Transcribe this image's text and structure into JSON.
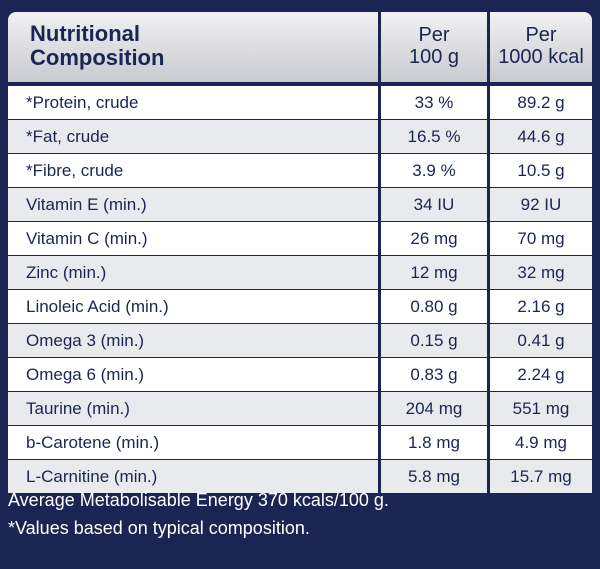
{
  "table": {
    "header": {
      "title_line1": "Nutritional",
      "title_line2": "Composition",
      "col1_line1": "Per",
      "col1_line2": "100 g",
      "col2_line1": "Per",
      "col2_line2": "1000 kcal"
    },
    "rows": [
      {
        "name": "*Protein, crude",
        "per100g": "33 %",
        "per1000kcal": "89.2 g"
      },
      {
        "name": "*Fat, crude",
        "per100g": "16.5 %",
        "per1000kcal": "44.6 g"
      },
      {
        "name": "*Fibre, crude",
        "per100g": "3.9 %",
        "per1000kcal": "10.5 g"
      },
      {
        "name": "Vitamin E (min.)",
        "per100g": "34 IU",
        "per1000kcal": "92 IU"
      },
      {
        "name": "Vitamin C (min.)",
        "per100g": "26 mg",
        "per1000kcal": "70 mg"
      },
      {
        "name": "Zinc (min.)",
        "per100g": "12 mg",
        "per1000kcal": "32 mg"
      },
      {
        "name": "Linoleic Acid (min.)",
        "per100g": "0.80 g",
        "per1000kcal": "2.16 g"
      },
      {
        "name": "Omega 3 (min.)",
        "per100g": "0.15 g",
        "per1000kcal": "0.41 g"
      },
      {
        "name": "Omega 6 (min.)",
        "per100g": "0.83 g",
        "per1000kcal": "2.24 g"
      },
      {
        "name": "Taurine (min.)",
        "per100g": "204 mg",
        "per1000kcal": "551 mg"
      },
      {
        "name": "b-Carotene (min.)",
        "per100g": "1.8 mg",
        "per1000kcal": "4.9 mg"
      },
      {
        "name": "L-Carnitine (min.)",
        "per100g": "5.8 mg",
        "per1000kcal": "15.7 mg"
      }
    ]
  },
  "footer": {
    "line1": "Average Metabolisable Energy 370 kcals/100 g.",
    "line2": "*Values based on typical composition."
  },
  "colors": {
    "background": "#1b2553",
    "text": "#1b2553",
    "row_alt": "#e9eaee",
    "row": "#ffffff"
  }
}
